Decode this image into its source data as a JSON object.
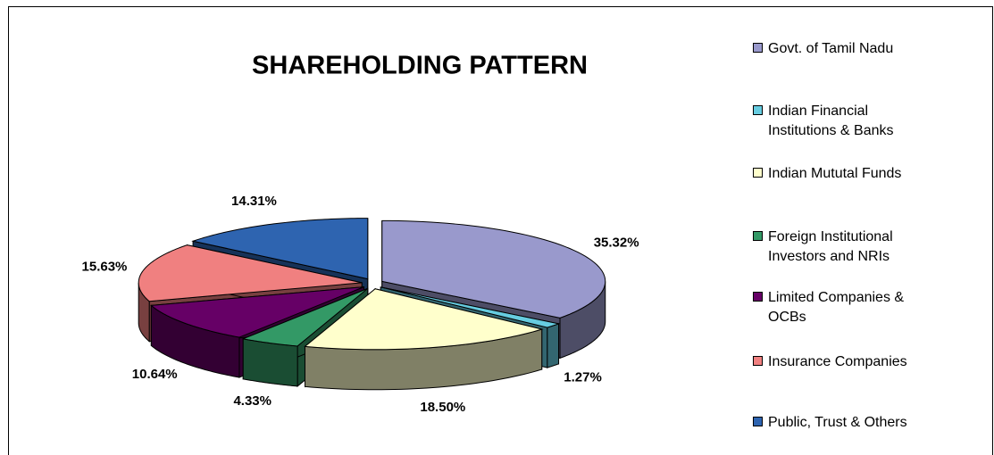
{
  "chart_data": {
    "type": "pie3d",
    "title": "SHAREHOLDING PATTERN",
    "categories": [
      "Govt. of Tamil Nadu",
      "Indian Financial Institutions & Banks",
      "Indian Mututal Funds",
      "Foreign Institutional Investors and NRIs",
      "Limited Companies & OCBs",
      "Insurance Companies",
      "Public, Trust & Others"
    ],
    "values": [
      35.32,
      1.27,
      18.5,
      4.33,
      10.64,
      15.63,
      14.31
    ],
    "value_labels": [
      "35.32%",
      "1.27%",
      "18.50%",
      "4.33%",
      "10.64%",
      "15.63%",
      "14.31%"
    ],
    "colors": [
      "#9999cc",
      "#66cce0",
      "#ffffcc",
      "#339966",
      "#660066",
      "#f08080",
      "#2e64b0"
    ],
    "legend": "right"
  }
}
